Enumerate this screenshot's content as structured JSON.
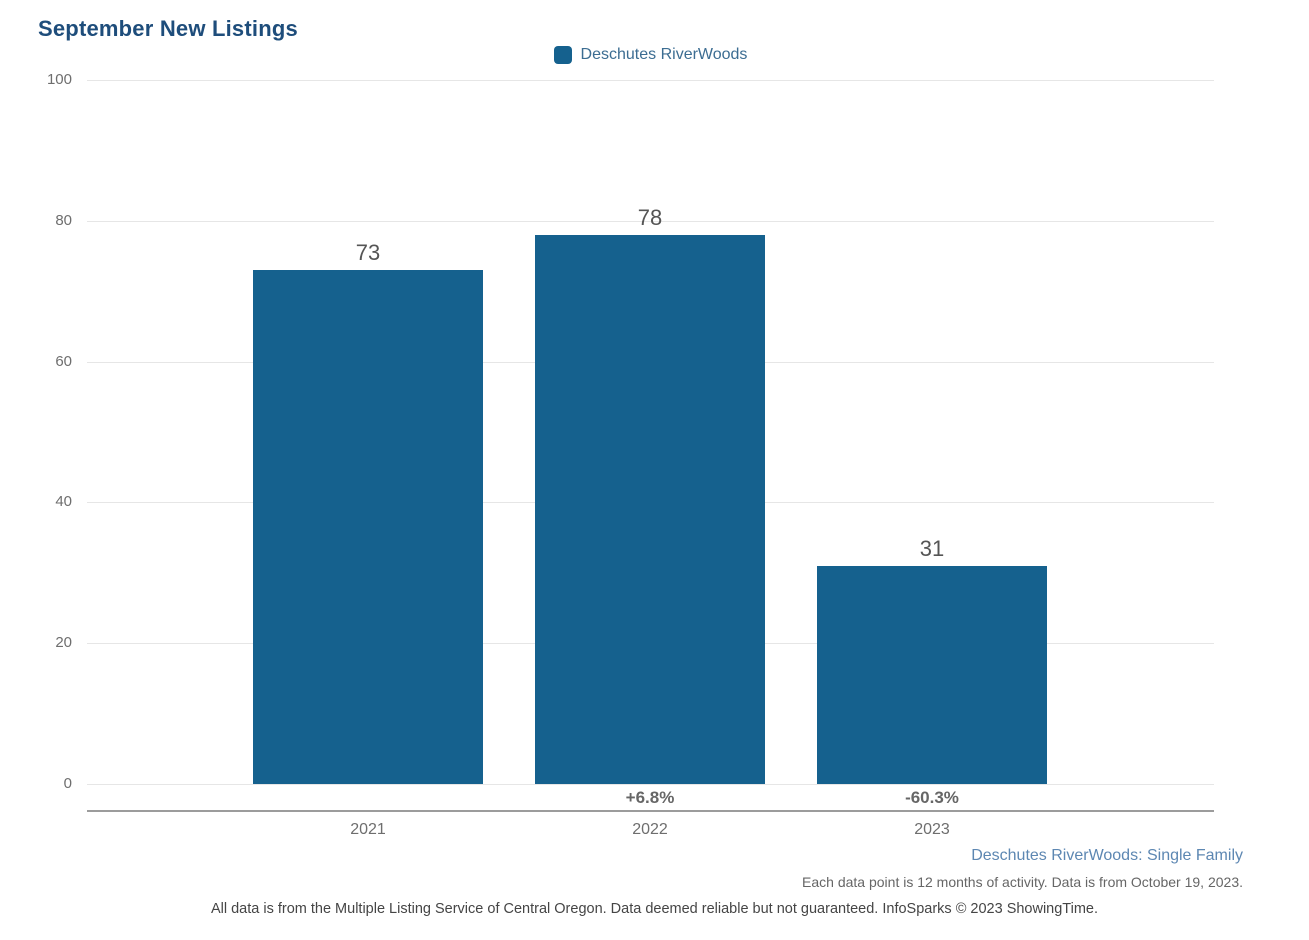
{
  "chart_data": {
    "type": "bar",
    "title": "September New Listings",
    "series": [
      {
        "name": "Deschutes RiverWoods",
        "values": [
          73,
          78,
          31
        ]
      }
    ],
    "categories": [
      "2021",
      "2022",
      "2023"
    ],
    "values": [
      73,
      78,
      31
    ],
    "value_labels": [
      "73",
      "78",
      "31"
    ],
    "pct_change": [
      "",
      "+6.8%",
      "-60.3%"
    ],
    "ylim": [
      0,
      100
    ],
    "yticks": [
      0,
      20,
      40,
      60,
      80,
      100
    ],
    "grid": true,
    "legend_position": "top-center",
    "legend_label": "Deschutes RiverWoods"
  },
  "colors": {
    "bar": "#15618e",
    "title": "#1e4d7b",
    "legend_text": "#3c6d92",
    "series_note_text": "#5d87b2",
    "gridline": "#e6e6e6",
    "axis_line": "#9c9c9c"
  },
  "footnotes": {
    "series_note": "Deschutes RiverWoods: Single Family",
    "data_note": "Each data point is 12 months of activity. Data is from October 19, 2023.",
    "disclaimer": "All data is from the Multiple Listing Service of Central Oregon. Data deemed reliable but not guaranteed. InfoSparks © 2023 ShowingTime."
  }
}
